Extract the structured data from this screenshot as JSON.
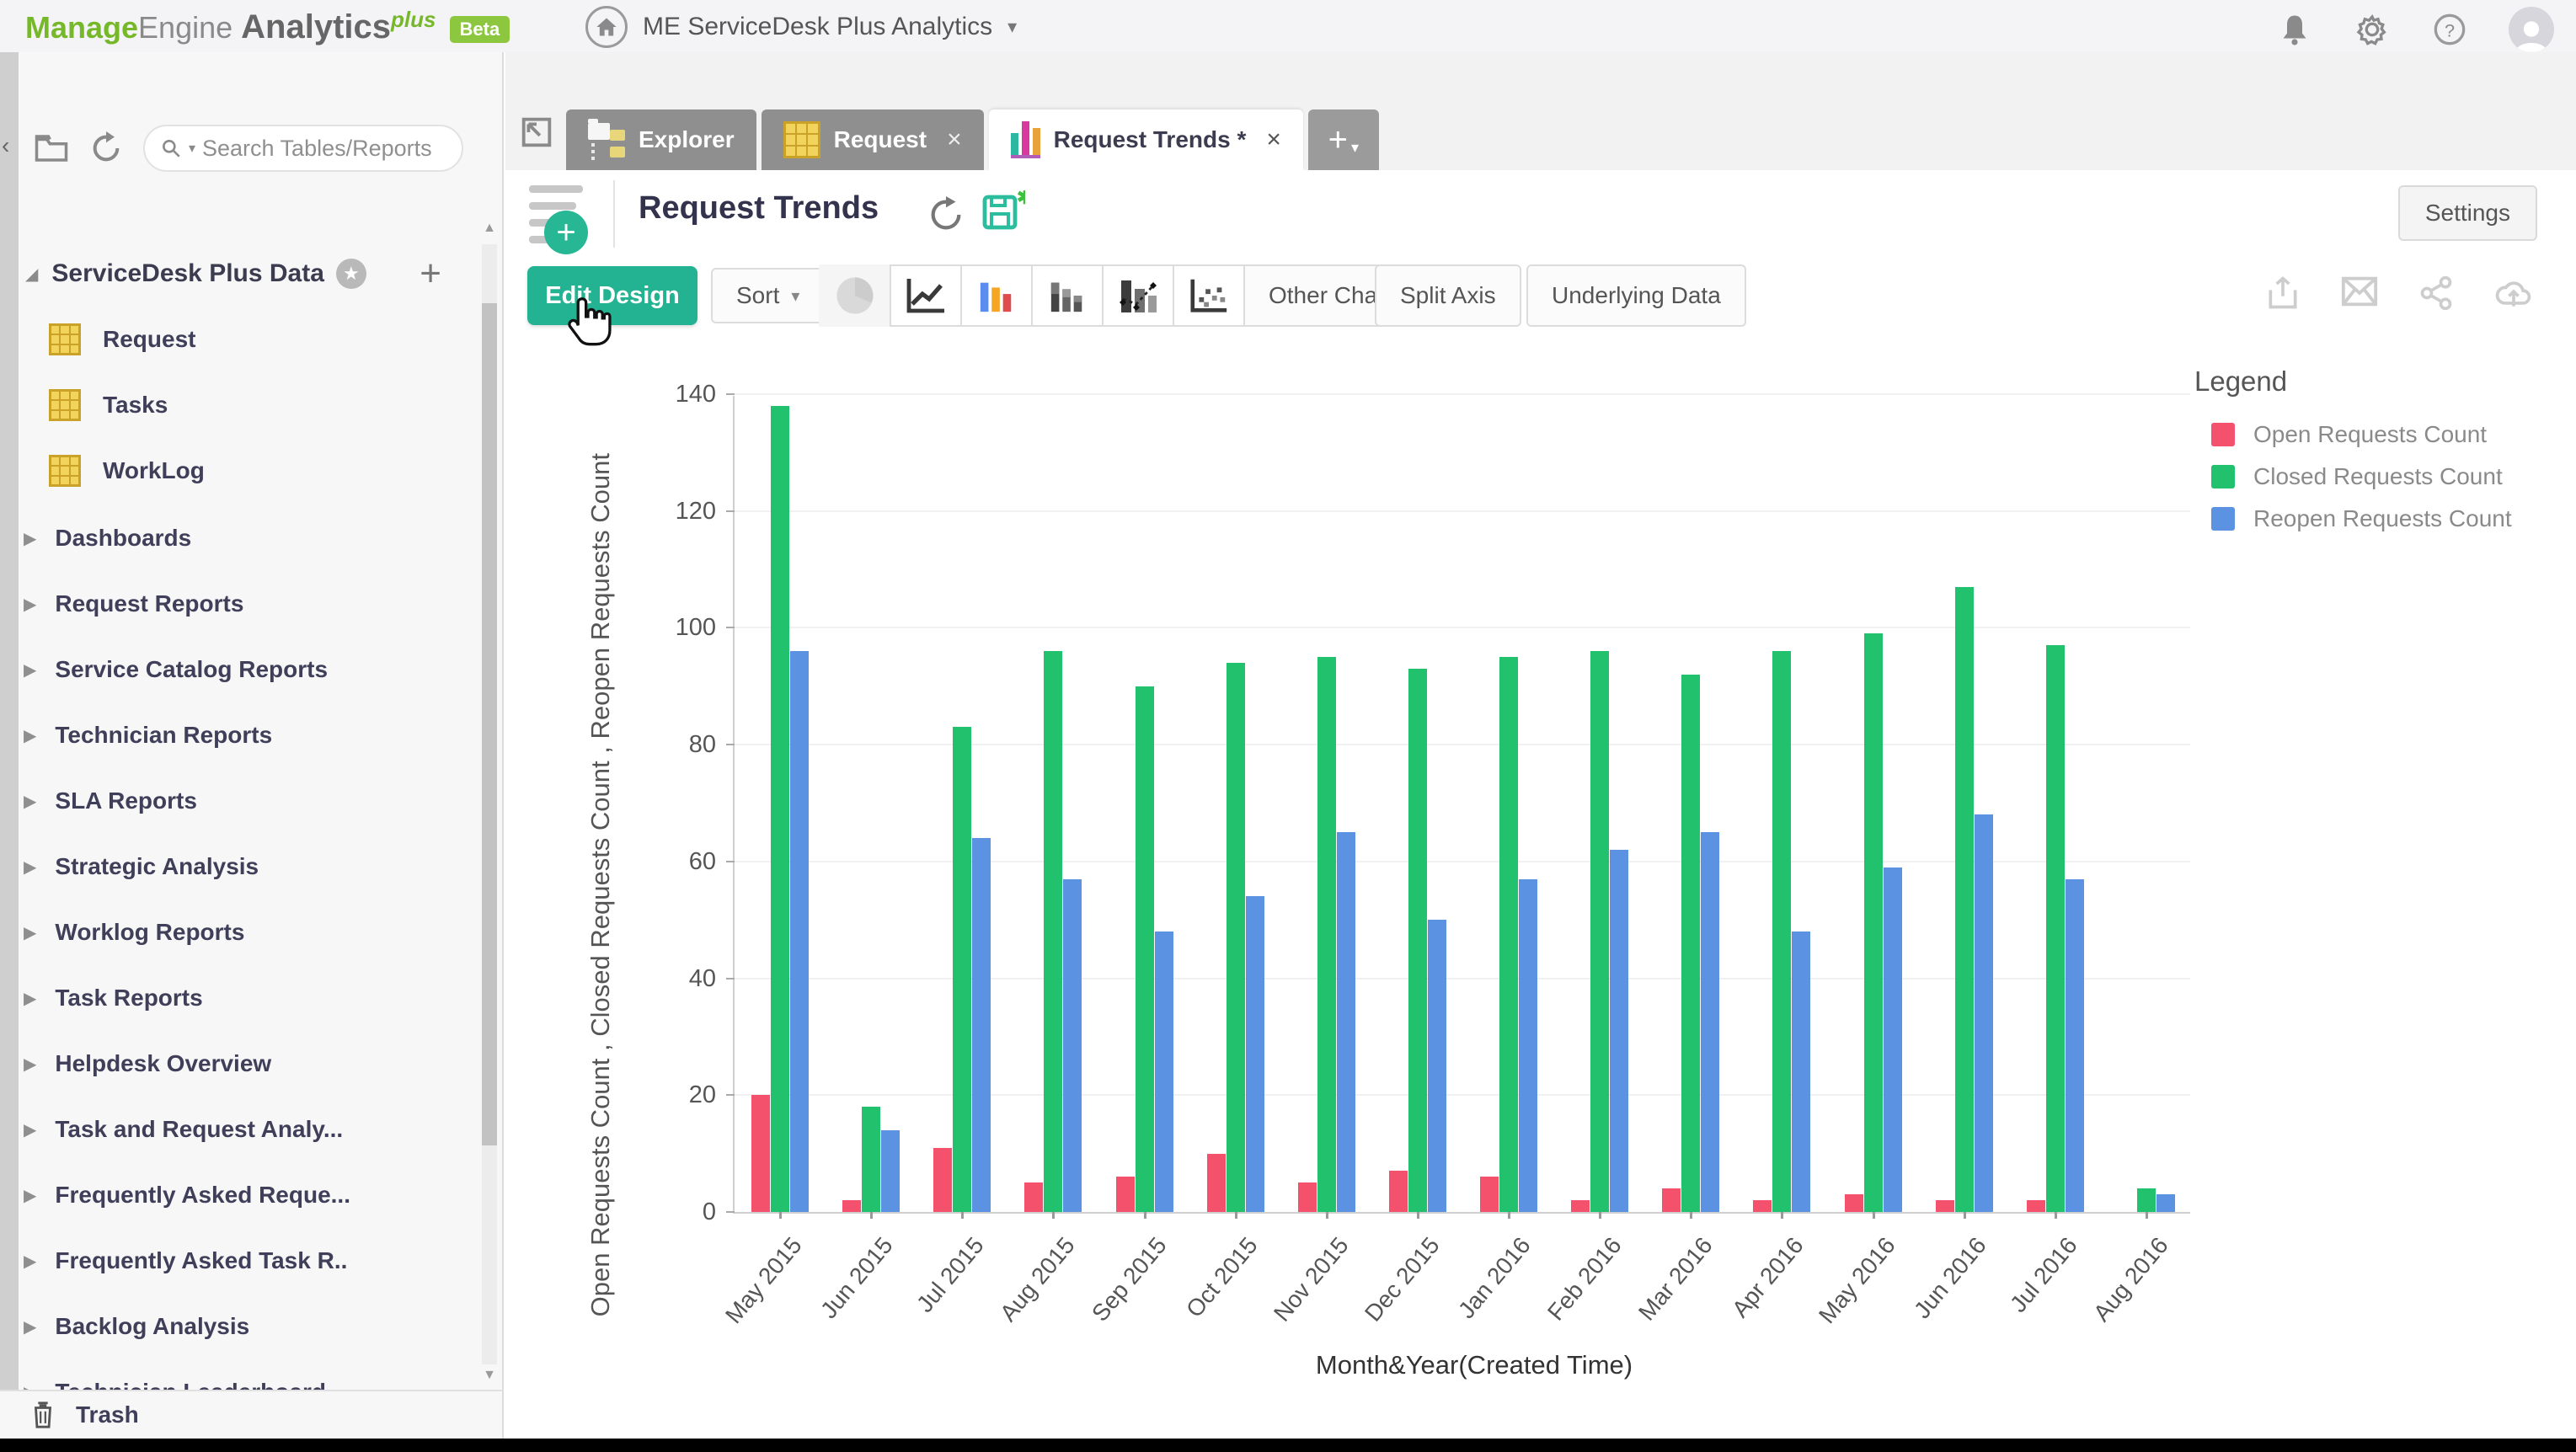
{
  "colors": {
    "accent_teal": "#23b393",
    "brand_green": "#76b82a",
    "tab_gray": "#8f8f8f",
    "open_color": "#f4516c",
    "closed_color": "#21c16e",
    "reopen_color": "#5b93e2"
  },
  "glyphs": {
    "caret_down": "▾",
    "chevron_left": "‹",
    "plus": "+",
    "close": "×",
    "star": "★",
    "tri_up": "▲",
    "tri_down": "▼",
    "tri_right": "▶",
    "twisty_open": "◢",
    "question": "?"
  },
  "header": {
    "logo_manage": "Manage",
    "logo_engine": "Engine",
    "logo_analytics": "Analytics",
    "logo_plus": "plus",
    "logo_beta": "Beta",
    "workspace": "ME ServiceDesk Plus Analytics"
  },
  "tabs": {
    "items": [
      {
        "label": "Explorer"
      },
      {
        "label": "Request"
      },
      {
        "label": "Request Trends *"
      }
    ]
  },
  "sidebar": {
    "search_placeholder": "Search Tables/Reports",
    "tree_title": "ServiceDesk Plus Data",
    "tables": [
      "Request",
      "Tasks",
      "WorkLog"
    ],
    "sections": [
      "Dashboards",
      "Request Reports",
      "Service Catalog Reports",
      "Technician Reports",
      "SLA Reports",
      "Strategic Analysis",
      "Worklog Reports",
      "Task Reports",
      "Helpdesk Overview",
      "Task and Request Analy...",
      "Frequently Asked Reque...",
      "Frequently Asked Task R..",
      "Backlog Analysis",
      "Technician Leaderboard"
    ],
    "trash": "Trash"
  },
  "toolbar": {
    "title": "Request Trends",
    "edit_design": "Edit Design",
    "sort": "Sort",
    "other_charts": "Other Charts",
    "split_axis": "Split Axis",
    "underlying_data": "Underlying Data",
    "settings": "Settings"
  },
  "chart_data": {
    "type": "bar",
    "title": "",
    "xlabel": "Month&Year(Created Time)",
    "ylabel": "Open Requests Count , Closed Requests Count , Reopen Requests Count",
    "legend_title": "Legend",
    "legend_position": "right",
    "grid": true,
    "ylim": [
      0,
      140
    ],
    "yticks": [
      0,
      20,
      40,
      60,
      80,
      100,
      120,
      140
    ],
    "categories": [
      "May 2015",
      "Jun 2015",
      "Jul 2015",
      "Aug 2015",
      "Sep 2015",
      "Oct 2015",
      "Nov 2015",
      "Dec 2015",
      "Jan 2016",
      "Feb 2016",
      "Mar 2016",
      "Apr 2016",
      "May 2016",
      "Jun 2016",
      "Jul 2016",
      "Aug 2016"
    ],
    "series": [
      {
        "name": "Open Requests Count",
        "color": "#f4516c",
        "values": [
          20,
          2,
          11,
          5,
          6,
          10,
          5,
          7,
          6,
          2,
          4,
          2,
          3,
          2,
          2,
          0
        ]
      },
      {
        "name": "Closed Requests Count",
        "color": "#21c16e",
        "values": [
          138,
          18,
          83,
          96,
          90,
          94,
          95,
          93,
          95,
          96,
          92,
          96,
          99,
          107,
          97,
          4
        ]
      },
      {
        "name": "Reopen Requests Count",
        "color": "#5b93e2",
        "values": [
          96,
          14,
          64,
          57,
          48,
          54,
          65,
          50,
          57,
          62,
          65,
          48,
          59,
          68,
          57,
          3
        ]
      }
    ]
  }
}
